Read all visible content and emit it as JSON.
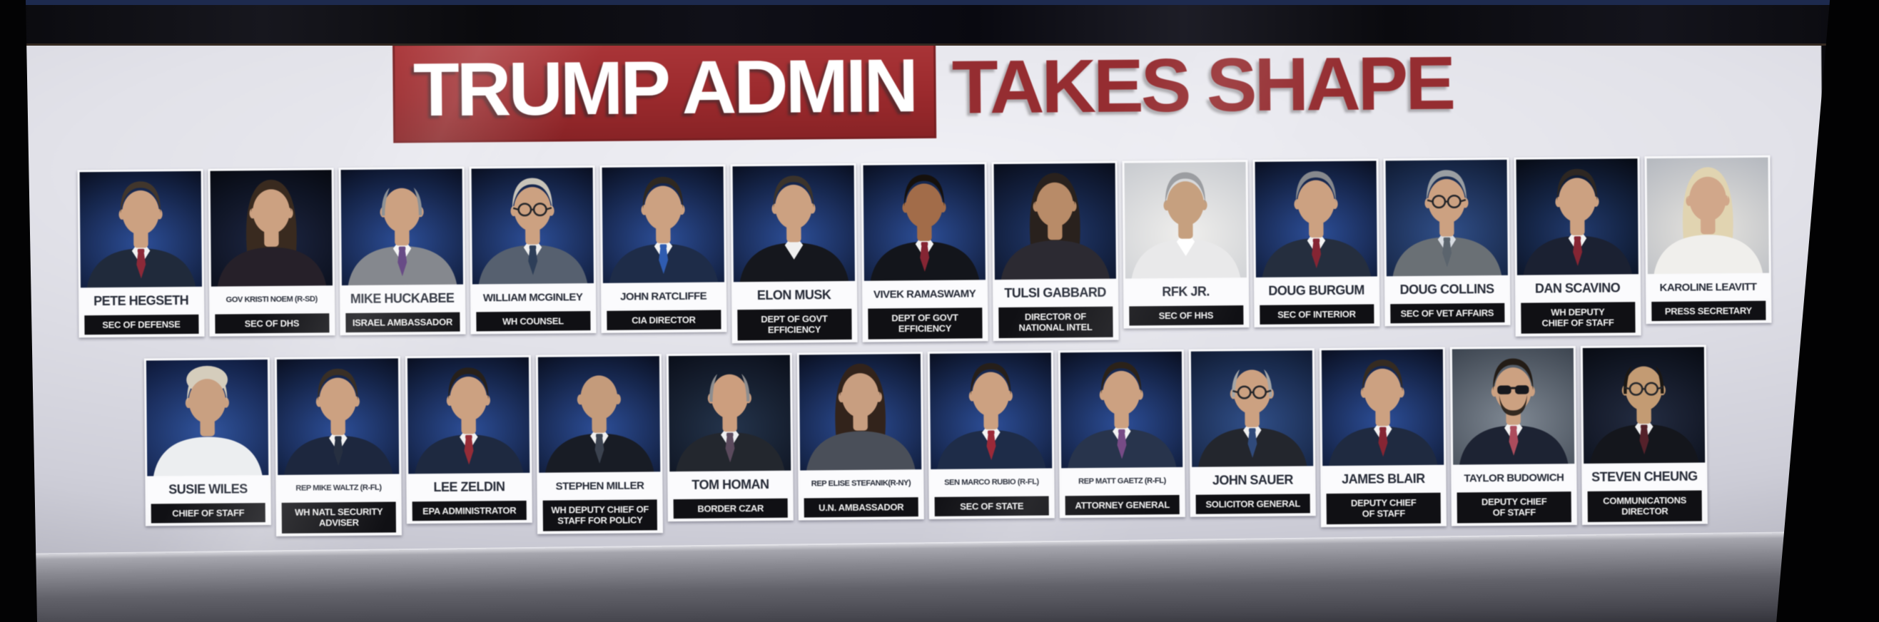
{
  "banner": {
    "highlight_text": "TRUMP ADMIN",
    "rest_text": "TAKES SHAPE",
    "highlight_bg": "#a3282b",
    "highlight_text_color": "#ffffff",
    "rest_text_color": "#9c2b2f"
  },
  "colors": {
    "screen_bg": "#e2e2ea",
    "name_text": "#262b38",
    "title_strip_bg": "#101014",
    "title_strip_text": "#f2f2f2",
    "photo_bg_default": [
      "#2a4e9e",
      "#070c1c"
    ],
    "skin_default": "#cfa07e"
  },
  "rows": [
    {
      "people": [
        {
          "name": "PETE HEGSETH",
          "title": "SEC OF DEFENSE",
          "photo": {
            "style": "short",
            "hair": "#42362b",
            "suit": "#1f2a3d",
            "shirt": "#f3f3f3",
            "tie": "#932737"
          }
        },
        {
          "name": "GOV KRISTI NOEM (R-SD)",
          "title": "SEC OF DHS",
          "photo": {
            "style": "long",
            "hair": "#3a2a1e",
            "suit": "#26202a",
            "bg": [
              "#1c2747",
              "#06080f"
            ]
          }
        },
        {
          "name": "MIKE HUCKABEE",
          "title": "ISRAEL AMBASSADOR",
          "photo": {
            "style": "balding",
            "hair": "#8e9296",
            "suit": "#85888e",
            "shirt": "#f5f5f5",
            "tie": "#6a4a8a"
          }
        },
        {
          "name": "WILLIAM MCGINLEY",
          "title": "WH COUNSEL",
          "photo": {
            "style": "short",
            "glasses": true,
            "hair": "#c9c4b8",
            "suit": "#556070",
            "shirt": "#eeeeee",
            "tie": "#2c3e5a"
          }
        },
        {
          "name": "JOHN RATCLIFFE",
          "title": "CIA DIRECTOR",
          "photo": {
            "style": "short",
            "hair": "#30281f",
            "suit": "#1d2c4a",
            "shirt": "#f3f3f3",
            "tie": "#2b5cb8"
          }
        },
        {
          "name": "ELON MUSK",
          "title": "DEPT OF GOVT\nEFFICIENCY",
          "photo": {
            "style": "short",
            "hair": "#3c332a",
            "suit": "#15171d",
            "shirt": "#f0f0f0"
          }
        },
        {
          "name": "VIVEK RAMASWAMY",
          "title": "DEPT OF GOVT\nEFFICIENCY",
          "photo": {
            "style": "short",
            "hair": "#15100c",
            "skin": "#a66b45",
            "suit": "#13151b",
            "shirt": "#f3f3f3",
            "tie": "#8c2332"
          }
        },
        {
          "name": "TULSI GABBARD",
          "title": "DIRECTOR OF\nNATIONAL INTEL",
          "photo": {
            "style": "long",
            "hair": "#2a211c",
            "skin": "#bb8a64",
            "suit": "#2c2a33",
            "bg": [
              "#203a74",
              "#070b18"
            ]
          }
        },
        {
          "name": "RFK JR.",
          "title": "SEC OF HHS",
          "photo": {
            "style": "short",
            "hair": "#9b9da1",
            "skin": "#c9a07c",
            "suit": "#e9e9ea",
            "shirt": "#ffffff",
            "bg": [
              "#f0efed",
              "#c6c9ce"
            ]
          }
        },
        {
          "name": "DOUG BURGUM",
          "title": "SEC OF INTERIOR",
          "photo": {
            "style": "short",
            "hair": "#87898d",
            "suit": "#242e40",
            "shirt": "#f3f3f3",
            "tie": "#8c2332"
          }
        },
        {
          "name": "DOUG COLLINS",
          "title": "SEC OF VET AFFAIRS",
          "photo": {
            "style": "short",
            "glasses": true,
            "hair": "#9a9ea2",
            "suit": "#6a7076",
            "shirt": "#d8dce2",
            "tie": "#5a646e",
            "bg": [
              "#2e4f8e",
              "#0d1830"
            ]
          }
        },
        {
          "name": "DAN SCAVINO",
          "title": "WH DEPUTY\nCHIEF OF STAFF",
          "photo": {
            "style": "short",
            "hair": "#2e2721",
            "suit": "#1b2133",
            "shirt": "#f3f3f3",
            "tie": "#8c2332",
            "bg": [
              "#1f3a72",
              "#05080f"
            ]
          }
        },
        {
          "name": "KAROLINE LEAVITT",
          "title": "PRESS SECRETARY",
          "photo": {
            "style": "long",
            "hair": "#e2d4ae",
            "skin": "#d4a687",
            "suit": "#f0efec",
            "bg": [
              "#e6e4df",
              "#b2b6be"
            ]
          }
        }
      ]
    },
    {
      "people": [
        {
          "name": "SUSIE WILES",
          "title": "CHIEF OF STAFF",
          "photo": {
            "style": "updo",
            "hair": "#d6cdbb",
            "skin": "#cc9f7e",
            "suit": "#eceef0",
            "bg": [
              "#2e54a4",
              "#0b1535"
            ]
          }
        },
        {
          "name": "REP MIKE WALTZ (R-FL)",
          "title": "WH NATL SECURITY\nADVISER",
          "photo": {
            "style": "short",
            "hair": "#3a2f24",
            "suit": "#1c2740",
            "shirt": "#f3f3f3",
            "tie": "#252f42"
          }
        },
        {
          "name": "LEE ZELDIN",
          "title": "EPA ADMINISTRATOR",
          "photo": {
            "style": "short",
            "hair": "#272019",
            "suit": "#1d2942",
            "shirt": "#f3f3f3",
            "tie": "#9c2a36"
          }
        },
        {
          "name": "STEPHEN MILLER",
          "title": "WH DEPUTY CHIEF OF\nSTAFF FOR POLICY",
          "photo": {
            "style": "bald",
            "skin": "#c79a78",
            "suit": "#181c26",
            "shirt": "#f0f0f0",
            "tie": "#3a4250"
          }
        },
        {
          "name": "TOM HOMAN",
          "title": "BORDER CZAR",
          "photo": {
            "style": "balding",
            "hair": "#8d8d8f",
            "skin": "#cf9d7b",
            "suit": "#23272f",
            "shirt": "#eef0f2",
            "tie": "#5c4a5e",
            "bg": [
              "#23344e",
              "#090d18"
            ]
          }
        },
        {
          "name": "REP ELISE STEFANIK(R-NY)",
          "title": "U.N. AMBASSADOR",
          "photo": {
            "style": "long",
            "hair": "#33231a",
            "skin": "#cb9d7d",
            "suit": "#4a4f5a"
          }
        },
        {
          "name": "SEN MARCO RUBIO (R-FL)",
          "title": "SEC OF STATE",
          "photo": {
            "style": "short",
            "hair": "#271f19",
            "suit": "#1d2c4a",
            "shirt": "#f5f5f5",
            "tie": "#a32737"
          }
        },
        {
          "name": "REP MATT GAETZ (R-FL)",
          "title": "ATTORNEY GENERAL",
          "photo": {
            "style": "short",
            "hair": "#2c2218",
            "suit": "#27344e",
            "shirt": "#f3f3f3",
            "tie": "#7a4a8a"
          }
        },
        {
          "name": "JOHN SAUER",
          "title": "SOLICITOR GENERAL",
          "photo": {
            "style": "balding",
            "glasses": true,
            "hair": "#a3a5a7",
            "suit": "#23262e",
            "shirt": "#f0f0f0",
            "tie": "#2e4a7e",
            "bg": [
              "#2e4f8e",
              "#0d1830"
            ]
          }
        },
        {
          "name": "JAMES BLAIR",
          "title": "DEPUTY CHIEF\nOF STAFF",
          "photo": {
            "style": "short",
            "hair": "#362b20",
            "suit": "#1e2a42",
            "shirt": "#f3f3f3",
            "tie": "#8c2332"
          }
        },
        {
          "name": "TAYLOR BUDOWICH",
          "title": "DEPUTY CHIEF\nOF STAFF",
          "photo": {
            "style": "short",
            "sunglasses": true,
            "beard": true,
            "hair": "#241c15",
            "suit": "#1d2334",
            "shirt": "#f3f3f3",
            "tie": "#b24a5c",
            "bg": [
              "#7e8894",
              "#39424e"
            ]
          }
        },
        {
          "name": "STEVEN CHEUNG",
          "title": "COMMUNICATIONS\nDIRECTOR",
          "photo": {
            "style": "balding",
            "glasses": true,
            "hair": "#1b1713",
            "skin": "#c69a6f",
            "suit": "#14161c",
            "shirt": "#f0f0f0",
            "tie": "#57202a",
            "bg": [
              "#222c44",
              "#070a12"
            ]
          }
        }
      ]
    }
  ]
}
